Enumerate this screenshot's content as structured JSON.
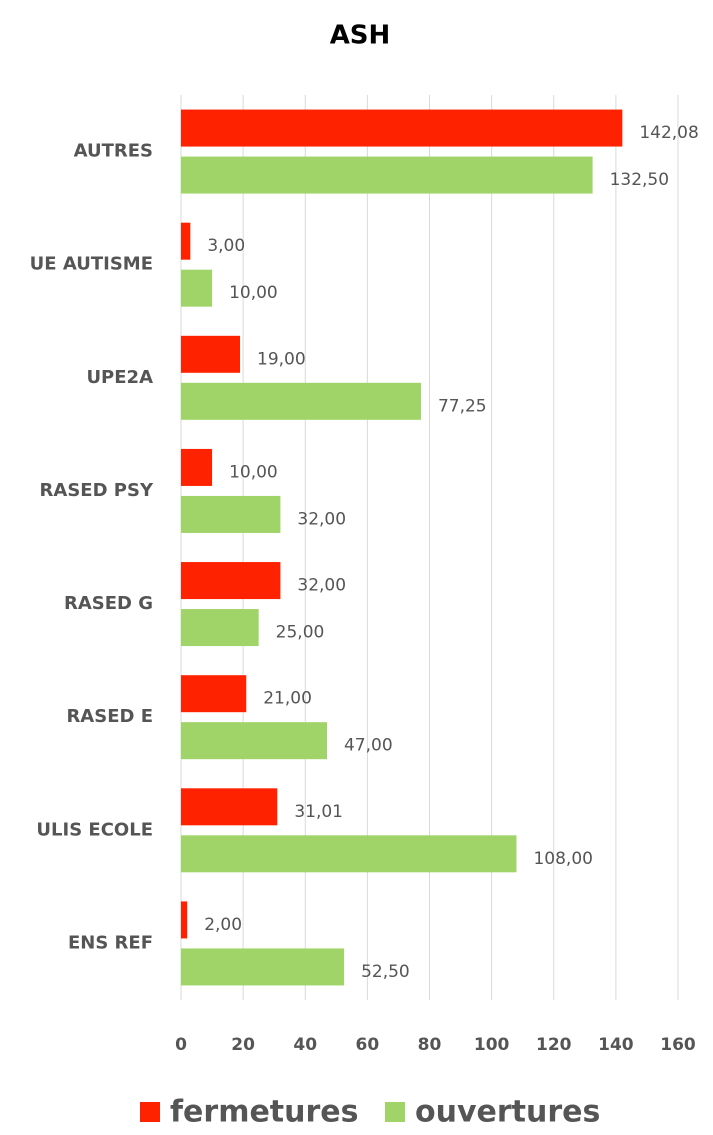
{
  "chart_data": {
    "type": "bar",
    "orientation": "horizontal",
    "title": "ASH",
    "categories": [
      "AUTRES",
      "UE AUTISME",
      "UPE2A",
      "RASED PSY",
      "RASED G",
      "RASED E",
      "ULIS ECOLE",
      "ENS REF"
    ],
    "series": [
      {
        "name": "fermetures",
        "color": "#ff2200",
        "values": [
          142.08,
          3,
          19,
          10,
          32,
          21,
          31.01,
          2
        ],
        "value_labels": [
          "142,08",
          "3,00",
          "19,00",
          "10,00",
          "32,00",
          "21,00",
          "31,01",
          "2,00"
        ]
      },
      {
        "name": "ouvertures",
        "color": "#a0d468",
        "values": [
          132.5,
          10,
          77.25,
          32,
          25,
          47,
          108,
          52.5
        ],
        "value_labels": [
          "132,50",
          "10,00",
          "77,25",
          "32,00",
          "25,00",
          "47,00",
          "108,00",
          "52,50"
        ]
      }
    ],
    "xlim": [
      0,
      160
    ],
    "xticks": [
      0,
      20,
      40,
      60,
      80,
      100,
      120,
      140,
      160
    ],
    "grid": true,
    "legend": "bottom"
  }
}
